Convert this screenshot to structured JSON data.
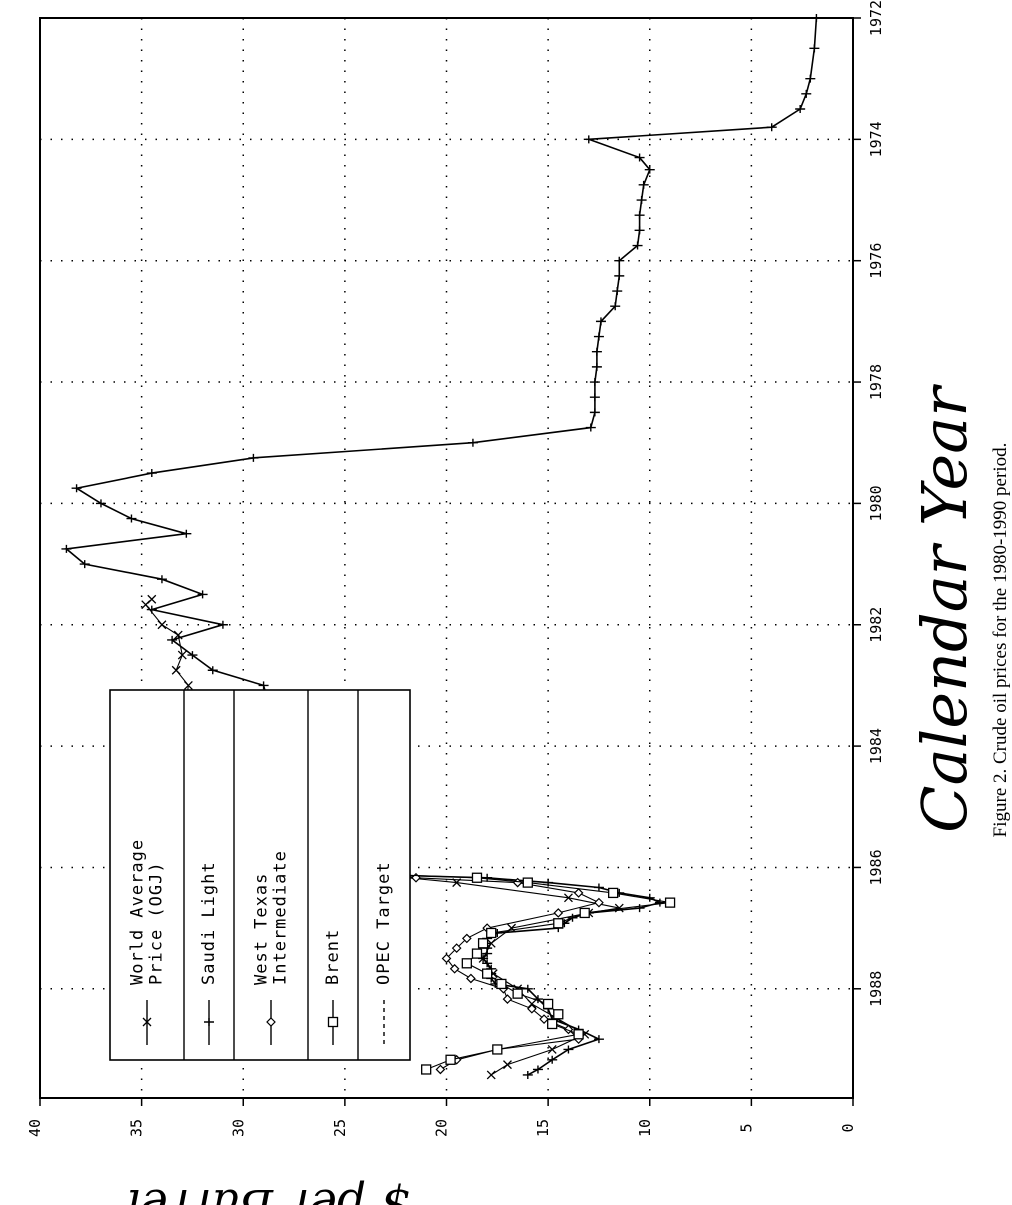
{
  "chart_data": {
    "type": "line",
    "xlabel": "Calendar Year",
    "ylabel": "$ per Barrel",
    "caption": "Figure 2.  Crude oil prices for the 1980-1990 period.",
    "xlim": [
      1972,
      1989.8
    ],
    "ylim": [
      0,
      40
    ],
    "x_ticks": [
      "1972",
      "1974",
      "1976",
      "1978",
      "1980",
      "1982",
      "1984",
      "1986",
      "1988"
    ],
    "y_ticks": [
      "0",
      "5",
      "10",
      "15",
      "20",
      "25",
      "30",
      "35",
      "40"
    ],
    "grid": "dotted",
    "legend_position": "upper-left",
    "orientation": "rotated 90 degrees counter-clockwise",
    "legend": [
      {
        "label_lines": [
          "World Average",
          "Price (OGJ)"
        ],
        "marker": "x"
      },
      {
        "label_lines": [
          "Saudi Light"
        ],
        "marker": "+"
      },
      {
        "label_lines": [
          "West Texas",
          "Intermediate"
        ],
        "marker": "diamond"
      },
      {
        "label_lines": [
          "Brent"
        ],
        "marker": "square"
      },
      {
        "label_lines": [
          "OPEC Target"
        ],
        "marker": "none",
        "dashed": true
      }
    ],
    "series": [
      {
        "name": "Saudi Light",
        "marker": "+",
        "points": [
          [
            1972.0,
            1.8
          ],
          [
            1972.5,
            1.9
          ],
          [
            1973.0,
            2.1
          ],
          [
            1973.25,
            2.3
          ],
          [
            1973.5,
            2.6
          ],
          [
            1973.8,
            4.0
          ],
          [
            1974.0,
            13.0
          ],
          [
            1974.3,
            10.5
          ],
          [
            1974.5,
            10.0
          ],
          [
            1974.75,
            10.3
          ],
          [
            1975.0,
            10.4
          ],
          [
            1975.25,
            10.5
          ],
          [
            1975.5,
            10.5
          ],
          [
            1975.75,
            10.6
          ],
          [
            1976.0,
            11.5
          ],
          [
            1976.25,
            11.5
          ],
          [
            1976.5,
            11.6
          ],
          [
            1976.75,
            11.7
          ],
          [
            1977.0,
            12.4
          ],
          [
            1977.25,
            12.5
          ],
          [
            1977.5,
            12.6
          ],
          [
            1977.75,
            12.6
          ],
          [
            1978.0,
            12.7
          ],
          [
            1978.25,
            12.7
          ],
          [
            1978.5,
            12.7
          ],
          [
            1978.75,
            12.9
          ],
          [
            1979.0,
            18.7
          ],
          [
            1979.25,
            29.5
          ],
          [
            1979.5,
            34.5
          ],
          [
            1979.75,
            38.2
          ],
          [
            1980.0,
            37.0
          ],
          [
            1980.25,
            35.5
          ],
          [
            1980.5,
            32.8
          ],
          [
            1980.75,
            38.7
          ],
          [
            1981.0,
            37.8
          ],
          [
            1981.25,
            34.0
          ],
          [
            1981.5,
            32.0
          ],
          [
            1981.75,
            34.5
          ],
          [
            1982.0,
            31.0
          ],
          [
            1982.25,
            33.5
          ],
          [
            1982.5,
            32.5
          ],
          [
            1982.75,
            31.5
          ],
          [
            1983.0,
            29.0
          ],
          [
            1983.25,
            28.8
          ],
          [
            1983.5,
            28.5
          ],
          [
            1983.75,
            28.3
          ],
          [
            1984.0,
            28.0
          ],
          [
            1984.25,
            27.8
          ],
          [
            1984.5,
            27.5
          ],
          [
            1984.75,
            27.5
          ],
          [
            1985.0,
            27.3
          ],
          [
            1985.25,
            27.5
          ],
          [
            1985.5,
            27.8
          ],
          [
            1985.75,
            27.8
          ],
          [
            1986.0,
            28.0
          ],
          [
            1986.08,
            27.8
          ],
          [
            1986.17,
            18.0
          ],
          [
            1986.25,
            15.0
          ],
          [
            1986.33,
            12.5
          ],
          [
            1986.42,
            11.5
          ],
          [
            1986.5,
            10.0
          ],
          [
            1986.58,
            9.5
          ],
          [
            1986.67,
            10.5
          ],
          [
            1986.75,
            13.0
          ],
          [
            1986.83,
            13.8
          ],
          [
            1986.92,
            14.2
          ],
          [
            1987.0,
            14.5
          ],
          [
            1987.08,
            17.5
          ],
          [
            1987.17,
            18.0
          ],
          [
            1987.25,
            18.0
          ],
          [
            1987.33,
            18.0
          ],
          [
            1987.42,
            18.0
          ],
          [
            1987.5,
            18.2
          ],
          [
            1987.58,
            18.0
          ],
          [
            1987.67,
            17.8
          ],
          [
            1987.75,
            17.8
          ],
          [
            1987.83,
            17.8
          ],
          [
            1987.92,
            17.6
          ],
          [
            1988.0,
            16.0
          ],
          [
            1988.17,
            15.5
          ],
          [
            1988.33,
            15.0
          ],
          [
            1988.5,
            14.8
          ],
          [
            1988.67,
            13.5
          ],
          [
            1988.83,
            12.5
          ],
          [
            1989.0,
            14.0
          ],
          [
            1989.17,
            14.8
          ],
          [
            1989.33,
            15.5
          ],
          [
            1989.42,
            16.0
          ]
        ]
      },
      {
        "name": "World Average Price (OGJ)",
        "marker": "x",
        "points": [
          [
            1981.58,
            34.5
          ],
          [
            1981.67,
            34.8
          ],
          [
            1982.0,
            34.0
          ],
          [
            1982.17,
            33.2
          ],
          [
            1982.5,
            33.0
          ],
          [
            1982.75,
            33.3
          ],
          [
            1983.0,
            32.7
          ],
          [
            1983.25,
            32.8
          ],
          [
            1983.33,
            29.0
          ],
          [
            1984.0,
            28.7
          ],
          [
            1984.5,
            28.4
          ],
          [
            1985.0,
            28.2
          ],
          [
            1985.5,
            27.8
          ],
          [
            1985.75,
            27.4
          ],
          [
            1986.0,
            27.2
          ],
          [
            1986.25,
            19.5
          ],
          [
            1986.5,
            14.0
          ],
          [
            1986.67,
            11.5
          ],
          [
            1986.75,
            13.0
          ],
          [
            1987.0,
            16.8
          ],
          [
            1987.25,
            17.8
          ],
          [
            1987.5,
            18.2
          ],
          [
            1987.75,
            17.7
          ],
          [
            1988.0,
            16.5
          ],
          [
            1988.25,
            15.8
          ],
          [
            1988.5,
            14.5
          ],
          [
            1988.75,
            13.2
          ],
          [
            1989.0,
            14.8
          ],
          [
            1989.25,
            17.0
          ],
          [
            1989.42,
            17.8
          ]
        ]
      },
      {
        "name": "West Texas Intermediate",
        "marker": "diamond",
        "points": [
          [
            1984.0,
            30.3
          ],
          [
            1984.5,
            30.0
          ],
          [
            1985.0,
            29.5
          ],
          [
            1985.5,
            28.5
          ],
          [
            1986.0,
            26.0
          ],
          [
            1986.17,
            21.5
          ],
          [
            1986.25,
            16.5
          ],
          [
            1986.42,
            13.5
          ],
          [
            1986.58,
            12.5
          ],
          [
            1986.75,
            14.5
          ],
          [
            1987.0,
            18.0
          ],
          [
            1987.17,
            19.0
          ],
          [
            1987.33,
            19.5
          ],
          [
            1987.5,
            20.0
          ],
          [
            1987.67,
            19.6
          ],
          [
            1987.83,
            18.8
          ],
          [
            1988.0,
            17.2
          ],
          [
            1988.17,
            17.0
          ],
          [
            1988.33,
            15.8
          ],
          [
            1988.5,
            15.2
          ],
          [
            1988.67,
            14.0
          ],
          [
            1988.83,
            13.5
          ],
          [
            1989.0,
            17.5
          ],
          [
            1989.17,
            19.5
          ],
          [
            1989.33,
            20.3
          ]
        ]
      },
      {
        "name": "Brent",
        "marker": "square",
        "points": [
          [
            1985.5,
            30.7
          ],
          [
            1985.67,
            29.1
          ],
          [
            1985.83,
            28.5
          ],
          [
            1986.0,
            27.0
          ],
          [
            1986.08,
            25.8
          ],
          [
            1986.17,
            18.5
          ],
          [
            1986.25,
            16.0
          ],
          [
            1986.42,
            11.8
          ],
          [
            1986.58,
            9.0
          ],
          [
            1986.75,
            13.2
          ],
          [
            1986.92,
            14.5
          ],
          [
            1987.08,
            17.8
          ],
          [
            1987.25,
            18.2
          ],
          [
            1987.42,
            18.5
          ],
          [
            1987.58,
            19.0
          ],
          [
            1987.75,
            18.0
          ],
          [
            1987.92,
            17.3
          ],
          [
            1988.08,
            16.5
          ],
          [
            1988.25,
            15.0
          ],
          [
            1988.42,
            14.5
          ],
          [
            1988.58,
            14.8
          ],
          [
            1988.75,
            13.5
          ],
          [
            1989.0,
            17.5
          ],
          [
            1989.17,
            19.8
          ],
          [
            1989.33,
            21.0
          ]
        ]
      }
    ]
  }
}
